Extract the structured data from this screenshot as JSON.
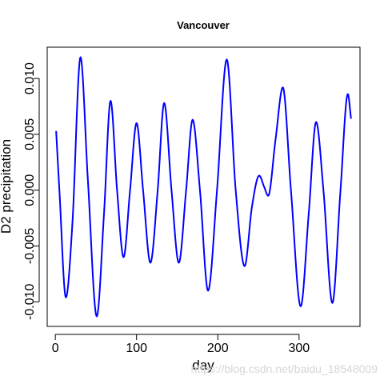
{
  "chart_data": {
    "type": "line",
    "title": "Vancouver",
    "xlabel": "day",
    "ylabel": "D2 precipitation",
    "xlim": [
      -10,
      375
    ],
    "ylim": [
      -0.0122,
      0.0128
    ],
    "x_ticks": [
      0,
      100,
      200,
      300
    ],
    "y_ticks": [
      -0.01,
      -0.005,
      0.0,
      0.005,
      0.01
    ],
    "y_tick_labels": [
      "-0.010",
      "-0.005",
      "0.000",
      "0.005",
      "0.010"
    ],
    "series": [
      {
        "color": "#0000ff",
        "points": [
          [
            1,
            0.0053
          ],
          [
            5,
            0.0
          ],
          [
            13,
            -0.0096
          ],
          [
            21,
            -0.003
          ],
          [
            31,
            0.0119
          ],
          [
            40,
            0.001
          ],
          [
            51,
            -0.0113
          ],
          [
            60,
            -0.002
          ],
          [
            68,
            0.008
          ],
          [
            76,
            0.0
          ],
          [
            84,
            -0.006
          ],
          [
            92,
            0.0
          ],
          [
            100,
            0.006
          ],
          [
            108,
            0.0
          ],
          [
            117,
            -0.0065
          ],
          [
            126,
            0.0
          ],
          [
            134,
            0.0078
          ],
          [
            143,
            0.0
          ],
          [
            152,
            -0.0065
          ],
          [
            161,
            0.0
          ],
          [
            169,
            0.0063
          ],
          [
            178,
            0.0
          ],
          [
            188,
            -0.009
          ],
          [
            199,
            0.0
          ],
          [
            211,
            0.0117
          ],
          [
            222,
            0.0
          ],
          [
            233,
            -0.0068
          ],
          [
            242,
            -0.0015
          ],
          [
            251,
            0.0013
          ],
          [
            257,
            0.0003
          ],
          [
            262,
            -0.0005
          ],
          [
            271,
            0.0045
          ],
          [
            280,
            0.0092
          ],
          [
            290,
            0.0
          ],
          [
            302,
            -0.0104
          ],
          [
            312,
            -0.002
          ],
          [
            321,
            0.0061
          ],
          [
            330,
            0.0
          ],
          [
            341,
            -0.0101
          ],
          [
            351,
            0.0
          ],
          [
            360,
            0.0086
          ],
          [
            364,
            0.0064
          ]
        ]
      }
    ],
    "grid": false,
    "legend": false
  },
  "watermark": "https://blog.csdn.net/baidu_18548009"
}
